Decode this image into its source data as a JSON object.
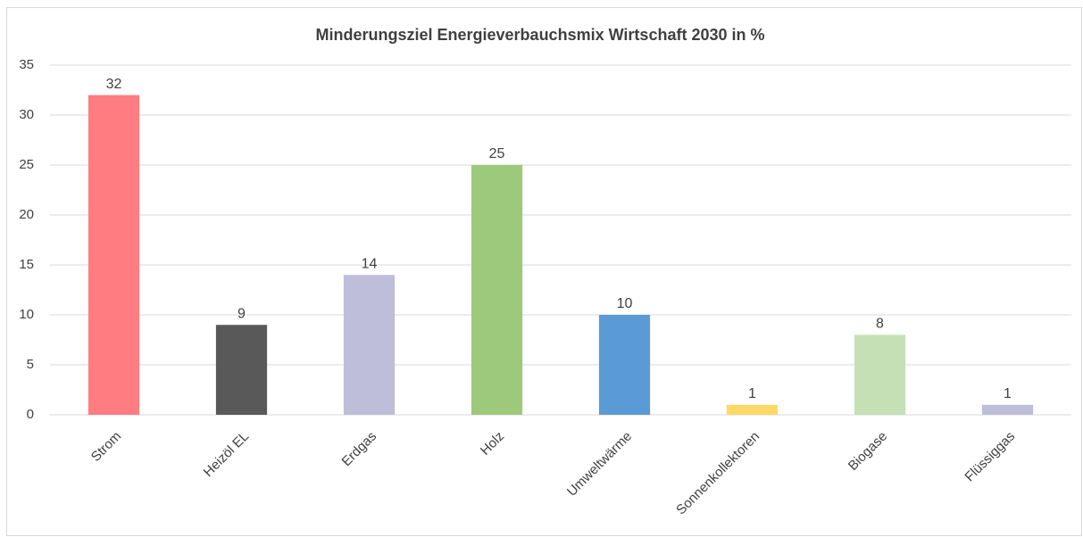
{
  "chart_data": {
    "type": "bar",
    "title": "Minderungsziel Energieverbauchsmix Wirtschaft 2030 in %",
    "categories": [
      "Strom",
      "Heizöl EL",
      "Erdgas",
      "Holz",
      "Umweltwärme",
      "Sonnenkollektoren",
      "Biogase",
      "Flüssiggas"
    ],
    "values": [
      32,
      9,
      14,
      25,
      10,
      1,
      8,
      1
    ],
    "colors": [
      "#ff7c80",
      "#595959",
      "#bfbed8",
      "#9dc97a",
      "#5b9bd5",
      "#ffd966",
      "#c5e0b4",
      "#bfbed8"
    ],
    "ylim": [
      0,
      35
    ],
    "yticks": [
      0,
      5,
      10,
      15,
      20,
      25,
      30,
      35
    ],
    "grid": true
  }
}
